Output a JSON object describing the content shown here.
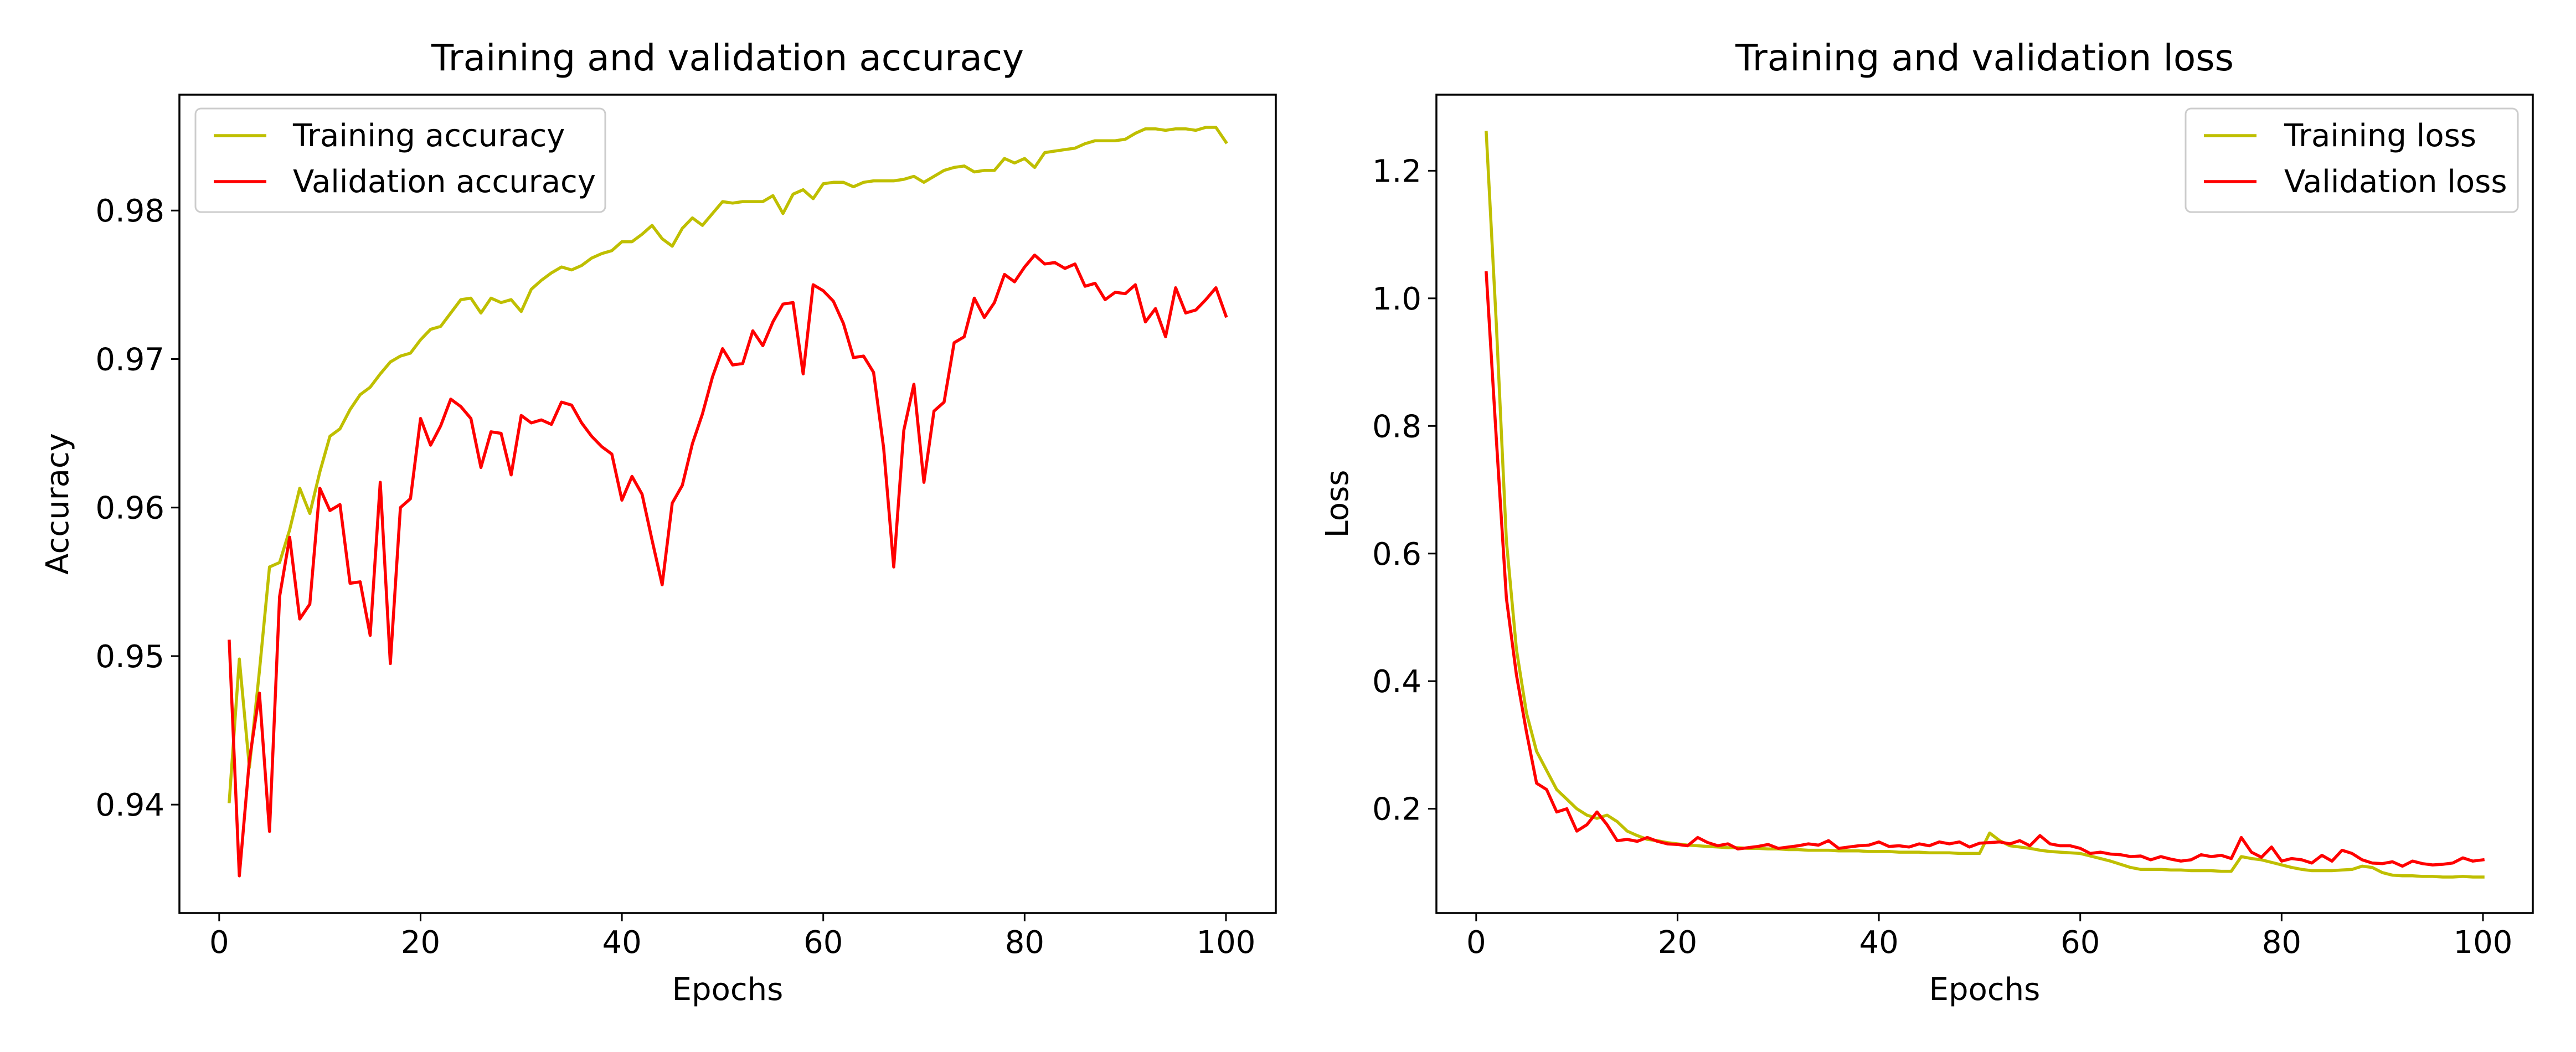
{
  "chart_data": [
    {
      "type": "line",
      "title": "Training and validation accuracy",
      "xlabel": "Epochs",
      "ylabel": "Accuracy",
      "xlim": [
        -3.95,
        104.95
      ],
      "ylim": [
        0.9327,
        0.9878
      ],
      "xticks": [
        0,
        20,
        40,
        60,
        80,
        100
      ],
      "xtick_labels": [
        "0",
        "20",
        "40",
        "60",
        "80",
        "100"
      ],
      "yticks": [
        0.94,
        0.95,
        0.96,
        0.97,
        0.98
      ],
      "ytick_labels": [
        "0.94",
        "0.95",
        "0.96",
        "0.97",
        "0.98"
      ],
      "legend_position": "upper-left",
      "grid": false,
      "series": [
        {
          "name": "Training accuracy",
          "color": "#bfbf00",
          "x": [
            1,
            2,
            3,
            4,
            5,
            6,
            7,
            8,
            9,
            10,
            11,
            12,
            13,
            14,
            15,
            16,
            17,
            18,
            19,
            20,
            21,
            22,
            23,
            24,
            25,
            26,
            27,
            28,
            29,
            30,
            31,
            32,
            33,
            34,
            35,
            36,
            37,
            38,
            39,
            40,
            41,
            42,
            43,
            44,
            45,
            46,
            47,
            48,
            49,
            50,
            51,
            52,
            53,
            54,
            55,
            56,
            57,
            58,
            59,
            60,
            61,
            62,
            63,
            64,
            65,
            66,
            67,
            68,
            69,
            70,
            71,
            72,
            73,
            74,
            75,
            76,
            77,
            78,
            79,
            80,
            81,
            82,
            83,
            84,
            85,
            86,
            87,
            88,
            89,
            90,
            91,
            92,
            93,
            94,
            95,
            96,
            97,
            98,
            99,
            100
          ],
          "values": [
            0.9402,
            0.9498,
            0.9425,
            0.949,
            0.956,
            0.9563,
            0.9585,
            0.9613,
            0.9596,
            0.9624,
            0.9648,
            0.9653,
            0.9666,
            0.9676,
            0.9681,
            0.969,
            0.9698,
            0.9702,
            0.9704,
            0.9713,
            0.972,
            0.9722,
            0.9731,
            0.974,
            0.9741,
            0.9731,
            0.9741,
            0.9738,
            0.974,
            0.9732,
            0.9747,
            0.9753,
            0.9758,
            0.9762,
            0.976,
            0.9763,
            0.9768,
            0.9771,
            0.9773,
            0.9779,
            0.9779,
            0.9784,
            0.979,
            0.9781,
            0.9776,
            0.9788,
            0.9795,
            0.979,
            0.9798,
            0.9806,
            0.9805,
            0.9806,
            0.9806,
            0.9806,
            0.981,
            0.9798,
            0.9811,
            0.9814,
            0.9808,
            0.9818,
            0.9819,
            0.9819,
            0.9816,
            0.9819,
            0.982,
            0.982,
            0.982,
            0.9821,
            0.9823,
            0.9819,
            0.9823,
            0.9827,
            0.9829,
            0.983,
            0.9826,
            0.9827,
            0.9827,
            0.9835,
            0.9832,
            0.9835,
            0.9829,
            0.9839,
            0.984,
            0.9841,
            0.9842,
            0.9845,
            0.9847,
            0.9847,
            0.9847,
            0.9848,
            0.9852,
            0.9855,
            0.9855,
            0.9854,
            0.9855,
            0.9855,
            0.9854,
            0.9856,
            0.9856,
            0.9846
          ]
        },
        {
          "name": "Validation accuracy",
          "color": "#ff0000",
          "x": [
            1,
            2,
            3,
            4,
            5,
            6,
            7,
            8,
            9,
            10,
            11,
            12,
            13,
            14,
            15,
            16,
            17,
            18,
            19,
            20,
            21,
            22,
            23,
            24,
            25,
            26,
            27,
            28,
            29,
            30,
            31,
            32,
            33,
            34,
            35,
            36,
            37,
            38,
            39,
            40,
            41,
            42,
            43,
            44,
            45,
            46,
            47,
            48,
            49,
            50,
            51,
            52,
            53,
            54,
            55,
            56,
            57,
            58,
            59,
            60,
            61,
            62,
            63,
            64,
            65,
            66,
            67,
            68,
            69,
            70,
            71,
            72,
            73,
            74,
            75,
            76,
            77,
            78,
            79,
            80,
            81,
            82,
            83,
            84,
            85,
            86,
            87,
            88,
            89,
            90,
            91,
            92,
            93,
            94,
            95,
            96,
            97,
            98,
            99,
            100
          ],
          "values": [
            0.951,
            0.9352,
            0.943,
            0.9475,
            0.9382,
            0.954,
            0.958,
            0.9525,
            0.9535,
            0.9613,
            0.9598,
            0.9602,
            0.9549,
            0.955,
            0.9514,
            0.9617,
            0.9495,
            0.96,
            0.9606,
            0.966,
            0.9642,
            0.9655,
            0.9673,
            0.9668,
            0.966,
            0.9627,
            0.9651,
            0.965,
            0.9622,
            0.9662,
            0.9657,
            0.9659,
            0.9656,
            0.9671,
            0.9669,
            0.9657,
            0.9648,
            0.9641,
            0.9636,
            0.9605,
            0.9621,
            0.9609,
            0.9578,
            0.9548,
            0.9603,
            0.9615,
            0.9643,
            0.9663,
            0.9688,
            0.9707,
            0.9696,
            0.9697,
            0.9719,
            0.9709,
            0.9725,
            0.9737,
            0.9738,
            0.969,
            0.975,
            0.9746,
            0.9739,
            0.9724,
            0.9701,
            0.9702,
            0.9691,
            0.964,
            0.956,
            0.9652,
            0.9683,
            0.9617,
            0.9665,
            0.9671,
            0.9711,
            0.9715,
            0.9741,
            0.9728,
            0.9738,
            0.9757,
            0.9752,
            0.9762,
            0.977,
            0.9764,
            0.9765,
            0.9761,
            0.9764,
            0.9749,
            0.9751,
            0.974,
            0.9745,
            0.9744,
            0.975,
            0.9725,
            0.9734,
            0.9715,
            0.9748,
            0.9731,
            0.9733,
            0.974,
            0.9748,
            0.9729
          ]
        }
      ]
    },
    {
      "type": "line",
      "title": "Training and validation loss",
      "xlabel": "Epochs",
      "ylabel": "Loss",
      "xlim": [
        -3.95,
        104.95
      ],
      "ylim": [
        0.0366,
        1.3192
      ],
      "xticks": [
        0,
        20,
        40,
        60,
        80,
        100
      ],
      "xtick_labels": [
        "0",
        "20",
        "40",
        "60",
        "80",
        "100"
      ],
      "yticks": [
        0.2,
        0.4,
        0.6,
        0.8,
        1.0,
        1.2
      ],
      "ytick_labels": [
        "0.2",
        "0.4",
        "0.6",
        "0.8",
        "1.0",
        "1.2"
      ],
      "legend_position": "upper-right",
      "grid": false,
      "series": [
        {
          "name": "Training loss",
          "color": "#bfbf00",
          "x": [
            1,
            2,
            3,
            4,
            5,
            6,
            7,
            8,
            9,
            10,
            11,
            12,
            13,
            14,
            15,
            16,
            17,
            18,
            19,
            20,
            21,
            22,
            23,
            24,
            25,
            26,
            27,
            28,
            29,
            30,
            31,
            32,
            33,
            34,
            35,
            36,
            37,
            38,
            39,
            40,
            41,
            42,
            43,
            44,
            45,
            46,
            47,
            48,
            49,
            50,
            51,
            52,
            53,
            54,
            55,
            56,
            57,
            58,
            59,
            60,
            61,
            62,
            63,
            64,
            65,
            66,
            67,
            68,
            69,
            70,
            71,
            72,
            73,
            74,
            75,
            76,
            77,
            78,
            79,
            80,
            81,
            82,
            83,
            84,
            85,
            86,
            87,
            88,
            89,
            90,
            91,
            92,
            93,
            94,
            95,
            96,
            97,
            98,
            99,
            100
          ],
          "values": [
            1.26,
            0.96,
            0.62,
            0.45,
            0.35,
            0.29,
            0.26,
            0.23,
            0.215,
            0.2,
            0.19,
            0.185,
            0.19,
            0.18,
            0.165,
            0.158,
            0.152,
            0.15,
            0.147,
            0.145,
            0.143,
            0.142,
            0.141,
            0.14,
            0.139,
            0.139,
            0.138,
            0.138,
            0.137,
            0.137,
            0.136,
            0.136,
            0.135,
            0.135,
            0.135,
            0.134,
            0.134,
            0.134,
            0.133,
            0.133,
            0.133,
            0.132,
            0.132,
            0.132,
            0.131,
            0.131,
            0.131,
            0.13,
            0.13,
            0.13,
            0.162,
            0.15,
            0.142,
            0.14,
            0.138,
            0.135,
            0.133,
            0.132,
            0.131,
            0.13,
            0.126,
            0.122,
            0.118,
            0.113,
            0.108,
            0.105,
            0.105,
            0.105,
            0.104,
            0.104,
            0.103,
            0.103,
            0.103,
            0.102,
            0.102,
            0.125,
            0.122,
            0.12,
            0.116,
            0.112,
            0.108,
            0.105,
            0.103,
            0.103,
            0.103,
            0.104,
            0.105,
            0.11,
            0.108,
            0.1,
            0.096,
            0.095,
            0.095,
            0.094,
            0.094,
            0.093,
            0.093,
            0.094,
            0.093,
            0.093
          ]
        },
        {
          "name": "Validation loss",
          "color": "#ff0000",
          "x": [
            1,
            2,
            3,
            4,
            5,
            6,
            7,
            8,
            9,
            10,
            11,
            12,
            13,
            14,
            15,
            16,
            17,
            18,
            19,
            20,
            21,
            22,
            23,
            24,
            25,
            26,
            27,
            28,
            29,
            30,
            31,
            32,
            33,
            34,
            35,
            36,
            37,
            38,
            39,
            40,
            41,
            42,
            43,
            44,
            45,
            46,
            47,
            48,
            49,
            50,
            51,
            52,
            53,
            54,
            55,
            56,
            57,
            58,
            59,
            60,
            61,
            62,
            63,
            64,
            65,
            66,
            67,
            68,
            69,
            70,
            71,
            72,
            73,
            74,
            75,
            76,
            77,
            78,
            79,
            80,
            81,
            82,
            83,
            84,
            85,
            86,
            87,
            88,
            89,
            90,
            91,
            92,
            93,
            94,
            95,
            96,
            97,
            98,
            99,
            100
          ],
          "values": [
            1.04,
            0.78,
            0.53,
            0.41,
            0.32,
            0.24,
            0.23,
            0.195,
            0.2,
            0.165,
            0.175,
            0.195,
            0.175,
            0.15,
            0.152,
            0.149,
            0.155,
            0.149,
            0.145,
            0.144,
            0.142,
            0.155,
            0.147,
            0.142,
            0.145,
            0.137,
            0.139,
            0.141,
            0.144,
            0.138,
            0.14,
            0.142,
            0.145,
            0.143,
            0.15,
            0.138,
            0.14,
            0.142,
            0.143,
            0.148,
            0.141,
            0.142,
            0.14,
            0.145,
            0.142,
            0.148,
            0.145,
            0.148,
            0.14,
            0.146,
            0.147,
            0.148,
            0.145,
            0.15,
            0.142,
            0.158,
            0.145,
            0.142,
            0.142,
            0.138,
            0.13,
            0.132,
            0.129,
            0.128,
            0.125,
            0.126,
            0.12,
            0.125,
            0.121,
            0.118,
            0.12,
            0.128,
            0.125,
            0.127,
            0.122,
            0.155,
            0.132,
            0.124,
            0.14,
            0.118,
            0.122,
            0.12,
            0.115,
            0.127,
            0.118,
            0.135,
            0.13,
            0.12,
            0.115,
            0.114,
            0.117,
            0.11,
            0.118,
            0.114,
            0.112,
            0.113,
            0.115,
            0.123,
            0.118,
            0.12
          ]
        }
      ]
    }
  ]
}
